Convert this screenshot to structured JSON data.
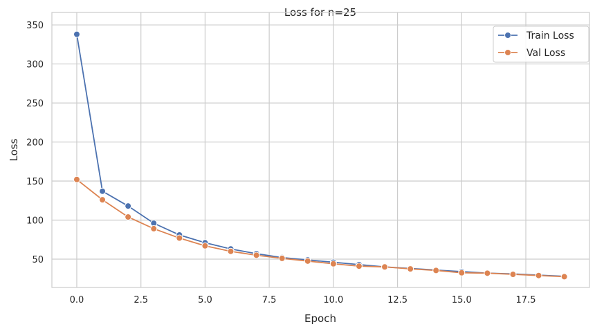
{
  "chart_data": {
    "type": "line",
    "title": "Loss for n=25",
    "xlabel": "Epoch",
    "ylabel": "Loss",
    "x": [
      0,
      1,
      2,
      3,
      4,
      5,
      6,
      7,
      8,
      9,
      10,
      11,
      12,
      13,
      14,
      15,
      16,
      17,
      18,
      19
    ],
    "series": [
      {
        "name": "Train Loss",
        "color": "#4c72b0",
        "values": [
          338,
          137,
          118,
          96,
          81,
          71,
          63,
          57,
          52,
          49,
          46,
          43,
          40,
          38,
          36,
          34,
          32,
          31,
          29.5,
          28
        ]
      },
      {
        "name": "Val Loss",
        "color": "#dd8452",
        "values": [
          152,
          126,
          104,
          89,
          77,
          67,
          60,
          55,
          51,
          47.5,
          44,
          41,
          40,
          37.5,
          35.5,
          32.5,
          32,
          30.5,
          29,
          27.5
        ]
      }
    ],
    "xlim": [
      -0.97,
      19.98
    ],
    "ylim": [
      13.7,
      366
    ],
    "xticks": [
      "0.0",
      "2.5",
      "5.0",
      "7.5",
      "10.0",
      "12.5",
      "15.0",
      "17.5"
    ],
    "yticks": [
      "50",
      "100",
      "150",
      "200",
      "250",
      "300",
      "350"
    ],
    "grid": true,
    "legend": "top-right"
  }
}
